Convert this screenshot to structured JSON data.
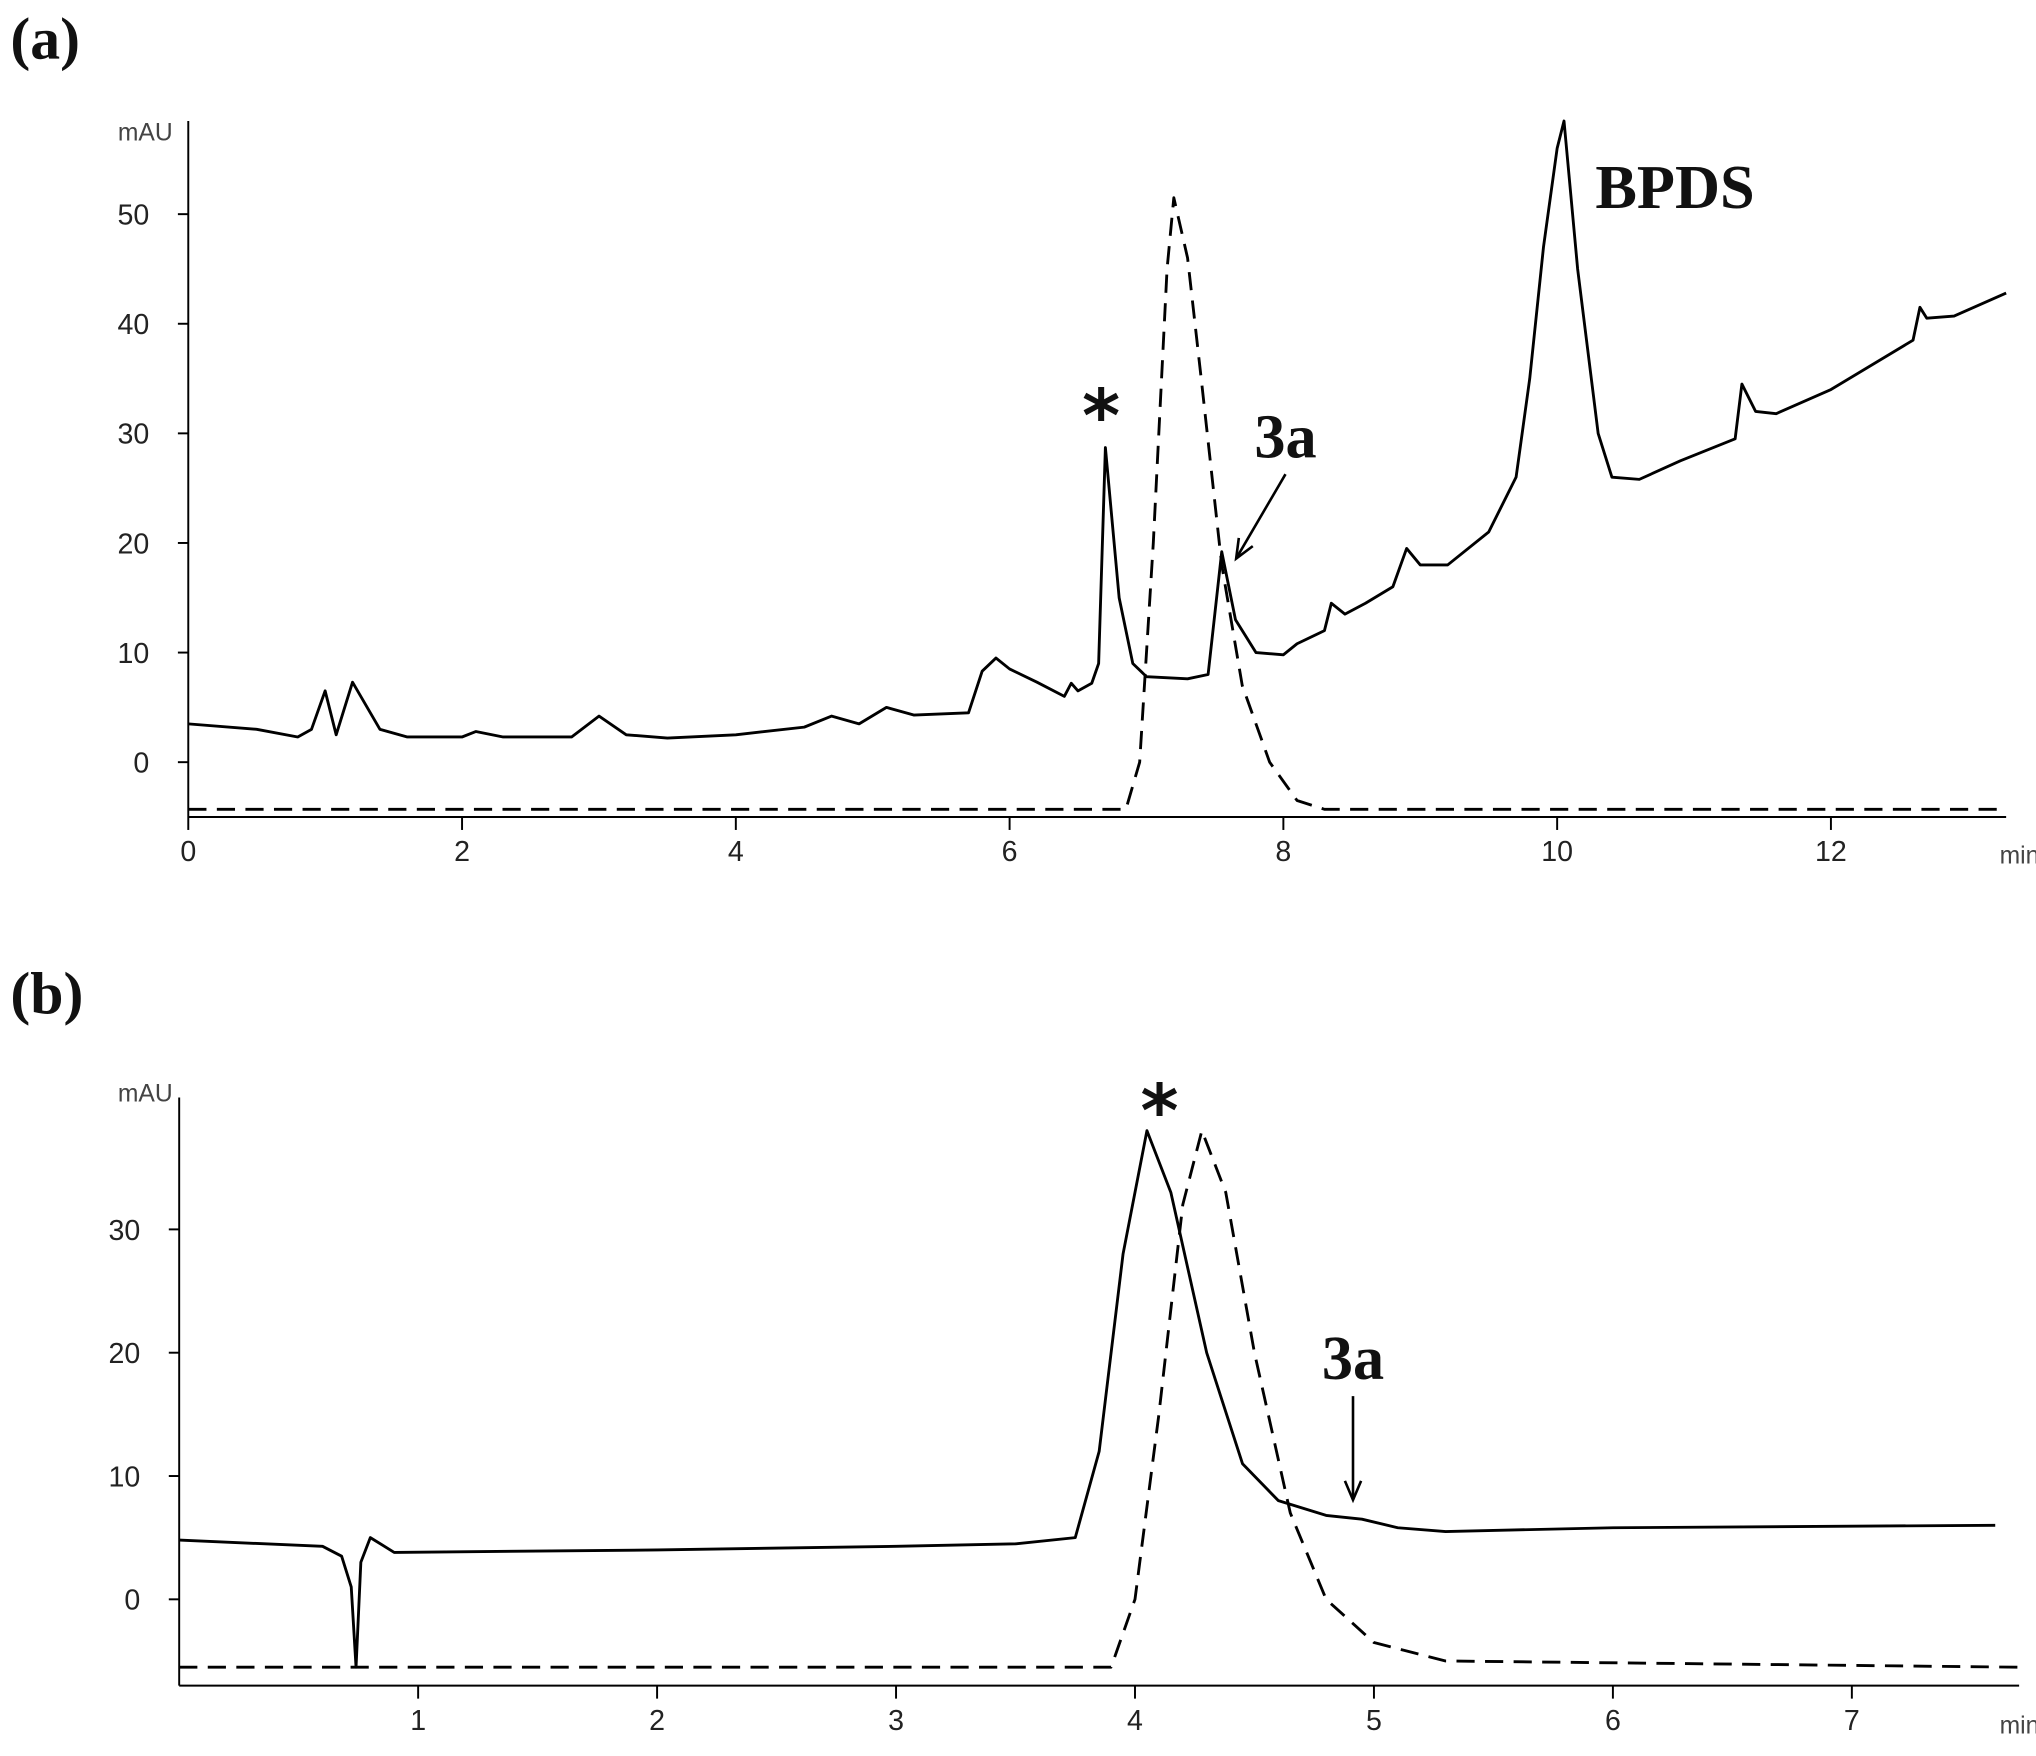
{
  "chart_data": [
    {
      "type": "line",
      "panel_label": "(a)",
      "ylabel": "mAU",
      "xlabel": "min",
      "xlim": [
        0,
        13.28
      ],
      "ylim": [
        -5,
        58.5
      ],
      "xticks": [
        0,
        2,
        4,
        6,
        8,
        10,
        12
      ],
      "yticks": [
        0,
        10,
        20,
        30,
        40,
        50
      ],
      "annotations": [
        "*",
        "3a",
        "BPDS"
      ],
      "series": [
        {
          "color": "#000000",
          "dashed": false,
          "x": [
            0,
            0.5,
            0.8,
            0.9,
            1.0,
            1.08,
            1.2,
            1.4,
            1.6,
            2.0,
            2.1,
            2.3,
            2.8,
            3.0,
            3.2,
            3.5,
            4.0,
            4.5,
            4.7,
            4.9,
            5.1,
            5.3,
            5.7,
            5.8,
            5.9,
            6.0,
            6.2,
            6.4,
            6.45,
            6.5,
            6.6,
            6.65,
            6.7,
            6.8,
            6.9,
            7.0,
            7.3,
            7.45,
            7.55,
            7.65,
            7.8,
            8.0,
            8.1,
            8.3,
            8.35,
            8.45,
            8.6,
            8.8,
            8.9,
            9.0,
            9.2,
            9.5,
            9.7,
            9.8,
            9.9,
            10.0,
            10.05,
            10.15,
            10.3,
            10.4,
            10.6,
            10.9,
            11.3,
            11.35,
            11.45,
            11.6,
            12.0,
            12.6,
            12.65,
            12.7,
            12.9,
            13.28
          ],
          "values": [
            3.5,
            3,
            2.3,
            3,
            6.5,
            2.5,
            7.3,
            3,
            2.3,
            2.3,
            2.8,
            2.3,
            2.3,
            4.2,
            2.5,
            2.2,
            2.5,
            3.2,
            4.2,
            3.5,
            5,
            4.3,
            4.5,
            8.3,
            9.5,
            8.5,
            7.3,
            6,
            7.2,
            6.5,
            7.2,
            9,
            28.7,
            15,
            9,
            7.8,
            7.6,
            8,
            19.2,
            13,
            10,
            9.8,
            10.8,
            12,
            14.5,
            13.5,
            14.5,
            16,
            19.5,
            18,
            18,
            21,
            26,
            35,
            47,
            56,
            58.5,
            45,
            30,
            26,
            25.8,
            27.5,
            29.5,
            34.5,
            32,
            31.8,
            34,
            38.5,
            41.5,
            40.5,
            40.7,
            42.8
          ]
        },
        {
          "color": "#000000",
          "dashed": true,
          "x": [
            0,
            6.85,
            6.95,
            7.05,
            7.15,
            7.2,
            7.3,
            7.4,
            7.55,
            7.7,
            7.9,
            8.1,
            8.3,
            13.28
          ],
          "values": [
            -4.3,
            -4.3,
            0,
            20,
            45,
            51.5,
            46,
            35,
            18,
            7,
            0,
            -3.5,
            -4.3,
            -4.3
          ]
        }
      ]
    },
    {
      "type": "line",
      "panel_label": "(b)",
      "ylabel": "mAU",
      "xlabel": "min",
      "xlim": [
        0,
        7.7
      ],
      "ylim": [
        -7,
        40.7
      ],
      "xticks": [
        1,
        2,
        3,
        4,
        5,
        6,
        7
      ],
      "yticks": [
        0,
        10,
        20,
        30
      ],
      "annotations": [
        "*",
        "3a"
      ],
      "series": [
        {
          "color": "#000000",
          "dashed": false,
          "x": [
            0,
            0.6,
            0.68,
            0.72,
            0.74,
            0.76,
            0.8,
            0.9,
            2,
            3,
            3.5,
            3.75,
            3.85,
            3.95,
            4.05,
            4.15,
            4.3,
            4.45,
            4.6,
            4.8,
            4.95,
            5.1,
            5.3,
            6,
            7.6
          ],
          "values": [
            4.8,
            4.3,
            3.5,
            1,
            -5.5,
            3,
            5,
            3.8,
            4,
            4.3,
            4.5,
            5,
            12,
            28,
            38,
            33,
            20,
            11,
            8,
            6.8,
            6.5,
            5.8,
            5.5,
            5.8,
            6
          ]
        },
        {
          "color": "#000000",
          "dashed": true,
          "x": [
            0,
            3.9,
            4.0,
            4.1,
            4.2,
            4.28,
            4.38,
            4.5,
            4.65,
            4.8,
            5.0,
            5.3,
            7.7
          ],
          "values": [
            -5.5,
            -5.5,
            0,
            15,
            32,
            38,
            33,
            20,
            7,
            0,
            -3.5,
            -5,
            -5.5
          ]
        }
      ]
    }
  ]
}
